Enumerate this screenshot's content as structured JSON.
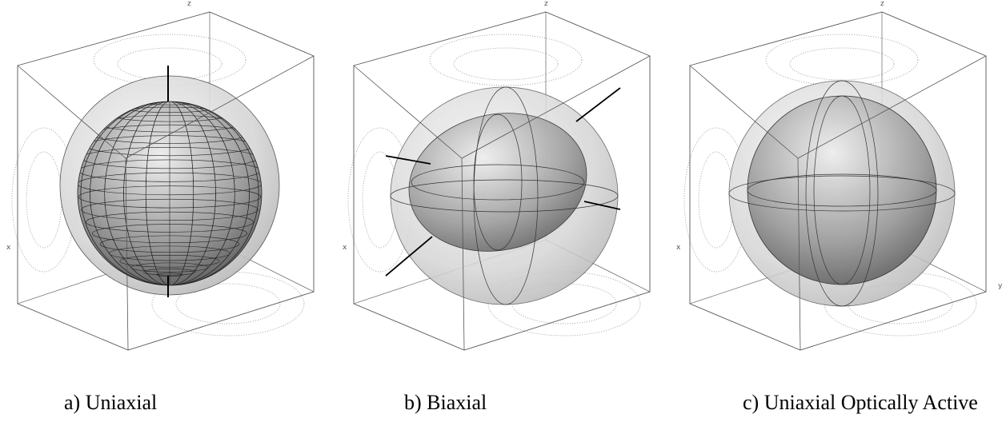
{
  "panels": [
    {
      "z_label": "z",
      "x_label": "x",
      "caption": "a) Uniaxial"
    },
    {
      "z_label": "z",
      "x_label": "x",
      "caption": "b) Biaxial"
    },
    {
      "z_label": "z",
      "x_label": "x",
      "y_label": "y",
      "caption": "c) Uniaxial Optically Active"
    }
  ]
}
